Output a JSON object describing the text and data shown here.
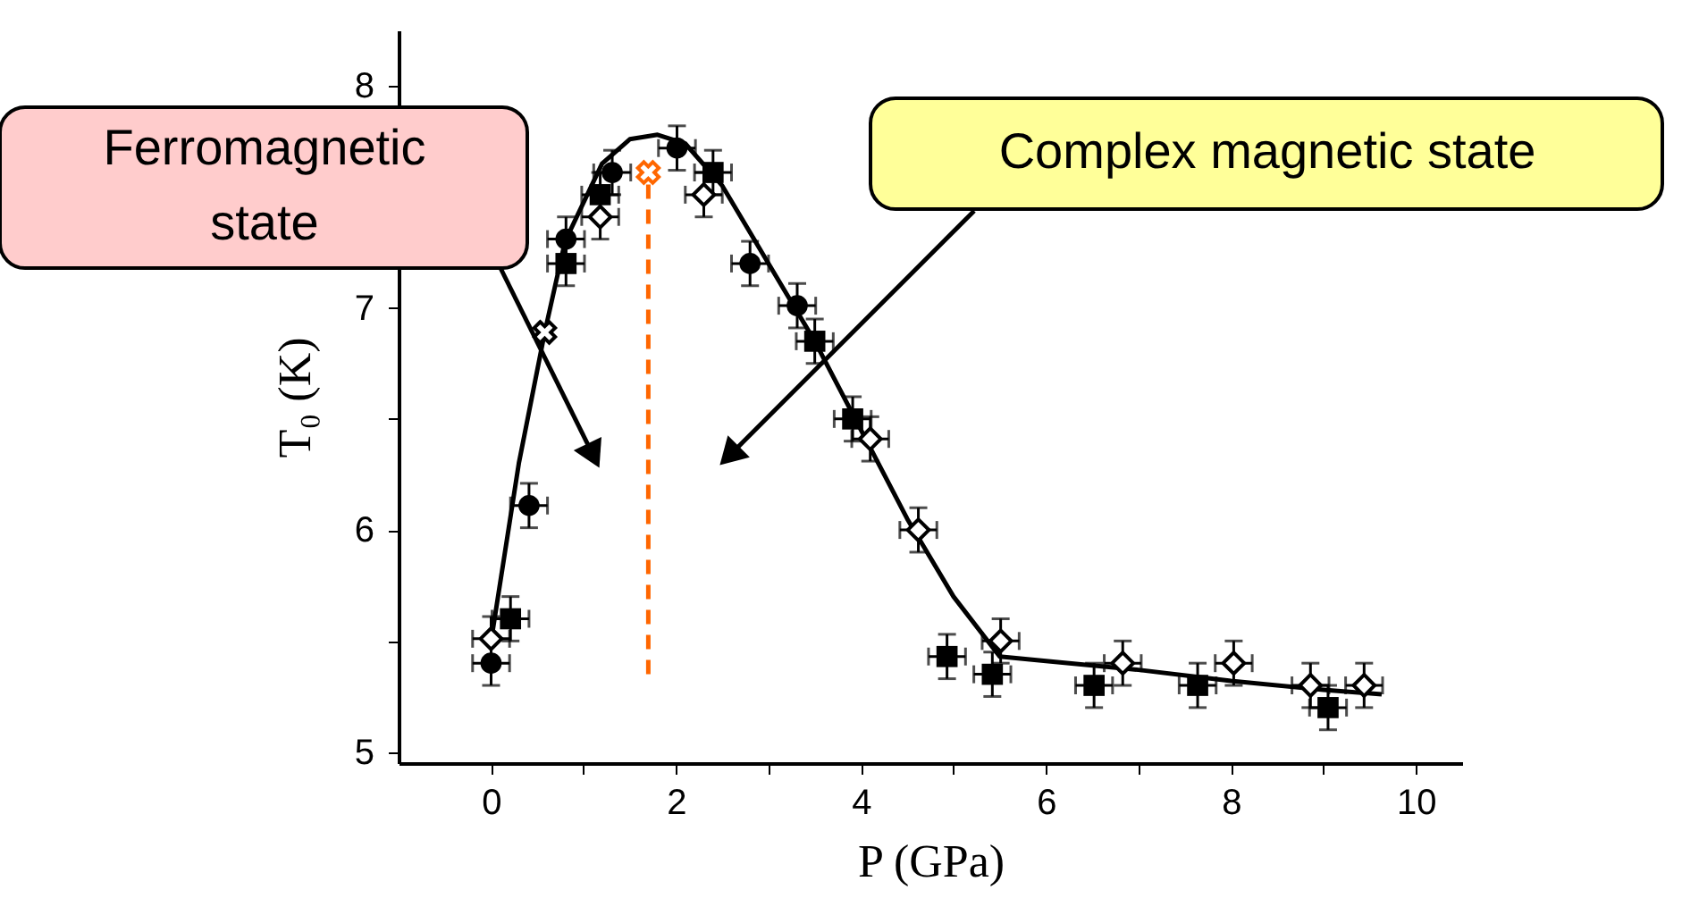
{
  "chart_data": {
    "type": "scatter",
    "xlabel": "P (GPa)",
    "ylabel": "T₀ (K)",
    "xlim": [
      -1,
      10.5
    ],
    "ylim": [
      4.95,
      8.25
    ],
    "xticks": [
      0,
      {
        "value": 1,
        "label": null
      },
      2,
      {
        "value": 3,
        "label": null
      },
      4,
      {
        "value": 5,
        "label": null
      },
      6,
      {
        "value": 7,
        "label": null
      },
      8,
      {
        "value": 9,
        "label": null
      },
      10
    ],
    "yticks": [
      5,
      {
        "value": 5.5,
        "label": null
      },
      6,
      {
        "value": 6.5,
        "label": null
      },
      7,
      {
        "value": 7.5,
        "label": null
      },
      8
    ],
    "grid": false,
    "annotations": [
      "Ferromagnetic\nstate",
      "Complex magnetic state"
    ],
    "series": [
      {
        "type": "line",
        "color": "#000000",
        "marker": "none",
        "line_style": "solid",
        "x": [
          0,
          0.3,
          0.58,
          0.8,
          1.2,
          1.5,
          1.8,
          2.1,
          2.5,
          3,
          3.5,
          4,
          4.5,
          5,
          5.5,
          6,
          7,
          8,
          9,
          9.63
        ],
        "values": [
          5.5,
          6.3,
          6.89,
          7.3,
          7.65,
          7.76,
          7.78,
          7.74,
          7.55,
          7.2,
          6.85,
          6.45,
          6.05,
          5.7,
          5.43,
          5.41,
          5.37,
          5.32,
          5.28,
          5.26
        ]
      },
      {
        "type": "line",
        "color": "#ff6600",
        "marker": "none",
        "line_style": "dashed",
        "x": [
          1.7,
          1.7
        ],
        "values": [
          5.35,
          7.6
        ]
      },
      {
        "color": "#000000",
        "marker": "circle",
        "x": [
          0,
          0.41,
          0.81,
          1.31,
          2.01,
          2.8,
          3.31
        ],
        "values": [
          5.4,
          6.11,
          7.31,
          7.61,
          7.72,
          7.2,
          7.01
        ],
        "errors": [
          0.1,
          0.1,
          0.1,
          0.1,
          0.1,
          0.1,
          0.1
        ],
        "xerrors": [
          0.2,
          0.2,
          0.2,
          0.2,
          0.2,
          0.2,
          0.2
        ]
      },
      {
        "color": "#000000",
        "marker": "square",
        "x": [
          0.21,
          0.81,
          1.18,
          2.4,
          3.5,
          3.91,
          4.93,
          5.42,
          6.52,
          7.64,
          9.05
        ],
        "values": [
          5.6,
          7.2,
          7.51,
          7.61,
          6.85,
          6.5,
          5.43,
          5.35,
          5.3,
          5.3,
          5.2
        ],
        "errors": [
          0.1,
          0.1,
          0.1,
          0.1,
          0.1,
          0.1,
          0.1,
          0.1,
          0.1,
          0.1,
          0.1
        ],
        "xerrors": [
          0.2,
          0.2,
          0.2,
          0.2,
          0.2,
          0.2,
          0.2,
          0.2,
          0.2,
          0.2,
          0.2
        ]
      },
      {
        "color": "#000000",
        "marker": "diamond",
        "x": [
          0,
          1.18,
          2.3,
          4.1,
          4.62,
          5.51,
          6.83,
          8.03,
          8.86,
          9.44
        ],
        "values": [
          5.51,
          7.41,
          7.51,
          6.41,
          6.0,
          5.5,
          5.4,
          5.4,
          5.3,
          5.3
        ],
        "errors": [
          0.1,
          0.1,
          0.1,
          0.1,
          0.1,
          0.1,
          0.1,
          0.1,
          0.1,
          0.1
        ],
        "xerrors": [
          0.2,
          0.2,
          0.2,
          0.2,
          0.2,
          0.2,
          0.2,
          0.2,
          0.2,
          0.2
        ]
      },
      {
        "color": "#000000",
        "marker": "cross",
        "x": [
          0.58
        ],
        "values": [
          6.89
        ]
      },
      {
        "color": "#ff6600",
        "marker": "cross",
        "x": [
          1.7
        ],
        "values": [
          7.61
        ]
      }
    ]
  }
}
